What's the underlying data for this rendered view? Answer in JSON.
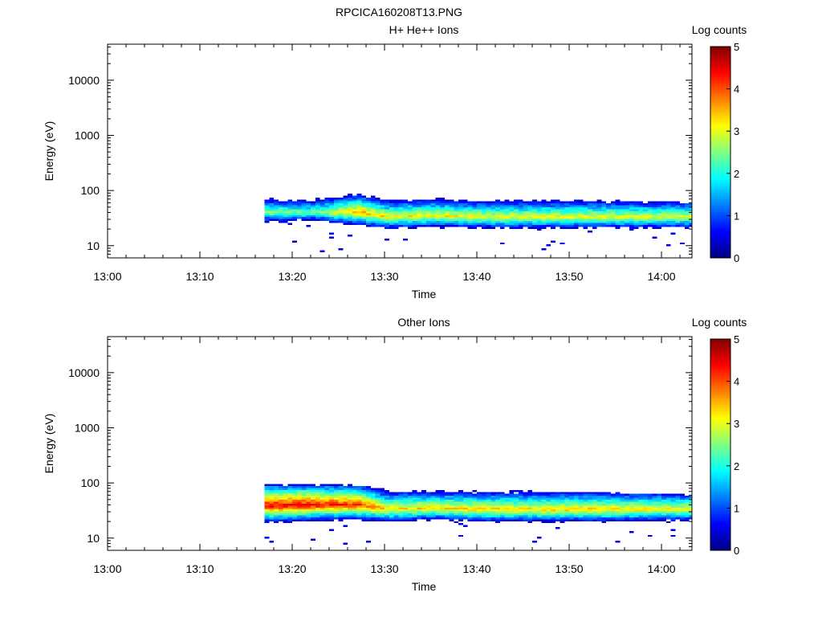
{
  "figure_title": "RPCICA160208T13.PNG",
  "colors": {
    "axis": "#000000",
    "colormap": [
      "#000080",
      "#0000ff",
      "#0080ff",
      "#00ffff",
      "#80ff80",
      "#ffff00",
      "#ff8000",
      "#ff0000",
      "#800000"
    ]
  },
  "chart_data": [
    {
      "type": "heatmap",
      "title": "H+ He++ Ions",
      "xlabel": "Time",
      "ylabel": "Energy (eV)",
      "x_ticks": [
        "13:00",
        "13:10",
        "13:20",
        "13:30",
        "13:40",
        "13:50",
        "14:00"
      ],
      "x_tick_minutes": [
        0,
        10,
        20,
        30,
        40,
        50,
        60
      ],
      "xlim_minutes_after_13_00": [
        0,
        63.3
      ],
      "yscale": "log",
      "y_ticks": [
        "10",
        "100",
        "1000",
        "10000"
      ],
      "y_tick_values": [
        10,
        100,
        1000,
        10000
      ],
      "ylim": [
        6,
        45000
      ],
      "data_start_time": "13:17",
      "colorbar": {
        "label": "Log counts",
        "range": [
          0,
          5
        ],
        "ticks": [
          "0",
          "1",
          "2",
          "3",
          "4",
          "5"
        ]
      },
      "band": [
        {
          "time": "13:17",
          "peak_energy_eV": 40,
          "peak_log_counts": 2.6,
          "upper_eV": 85
        },
        {
          "time": "13:22",
          "peak_energy_eV": 40,
          "peak_log_counts": 2.4,
          "upper_eV": 85
        },
        {
          "time": "13:27",
          "peak_energy_eV": 40,
          "peak_log_counts": 3.6,
          "upper_eV": 90
        },
        {
          "time": "13:30",
          "peak_energy_eV": 33,
          "peak_log_counts": 3.2,
          "upper_eV": 90
        },
        {
          "time": "13:35",
          "peak_energy_eV": 35,
          "peak_log_counts": 3.2,
          "upper_eV": 90
        },
        {
          "time": "13:40",
          "peak_energy_eV": 33,
          "peak_log_counts": 3.1,
          "upper_eV": 70
        },
        {
          "time": "13:50",
          "peak_energy_eV": 33,
          "peak_log_counts": 3.1,
          "upper_eV": 70
        },
        {
          "time": "14:03",
          "peak_energy_eV": 33,
          "peak_log_counts": 3.0,
          "upper_eV": 60
        }
      ]
    },
    {
      "type": "heatmap",
      "title": "Other Ions",
      "xlabel": "Time",
      "ylabel": "Energy (eV)",
      "x_ticks": [
        "13:00",
        "13:10",
        "13:20",
        "13:30",
        "13:40",
        "13:50",
        "14:00"
      ],
      "x_tick_minutes": [
        0,
        10,
        20,
        30,
        40,
        50,
        60
      ],
      "xlim_minutes_after_13_00": [
        0,
        63.3
      ],
      "yscale": "log",
      "y_ticks": [
        "10",
        "100",
        "1000",
        "10000"
      ],
      "y_tick_values": [
        10,
        100,
        1000,
        10000
      ],
      "ylim": [
        6,
        45000
      ],
      "data_start_time": "13:17",
      "colorbar": {
        "label": "Log counts",
        "range": [
          0,
          5
        ],
        "ticks": [
          "0",
          "1",
          "2",
          "3",
          "4",
          "5"
        ]
      },
      "band": [
        {
          "time": "13:17",
          "peak_energy_eV": 38,
          "peak_log_counts": 4.5,
          "upper_eV": 90
        },
        {
          "time": "13:22",
          "peak_energy_eV": 40,
          "peak_log_counts": 4.4,
          "upper_eV": 90
        },
        {
          "time": "13:27",
          "peak_energy_eV": 40,
          "peak_log_counts": 4.1,
          "upper_eV": 90
        },
        {
          "time": "13:30",
          "peak_energy_eV": 33,
          "peak_log_counts": 3.4,
          "upper_eV": 90
        },
        {
          "time": "13:35",
          "peak_energy_eV": 35,
          "peak_log_counts": 3.3,
          "upper_eV": 90
        },
        {
          "time": "13:40",
          "peak_energy_eV": 33,
          "peak_log_counts": 3.4,
          "upper_eV": 75
        },
        {
          "time": "13:50",
          "peak_energy_eV": 33,
          "peak_log_counts": 3.4,
          "upper_eV": 70
        },
        {
          "time": "14:03",
          "peak_energy_eV": 33,
          "peak_log_counts": 3.2,
          "upper_eV": 60
        }
      ]
    }
  ]
}
